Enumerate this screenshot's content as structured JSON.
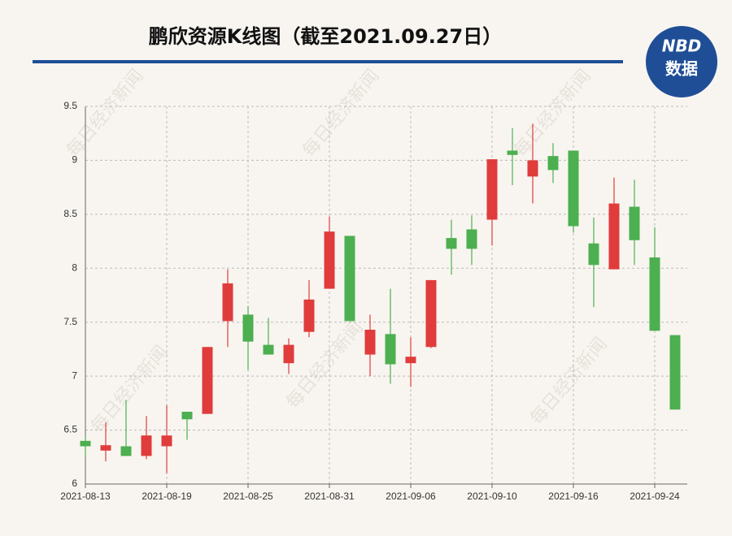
{
  "chart_data": {
    "type": "candlestick",
    "title": "鹏欣资源K线图（截至2021.09.27日）",
    "categories": [
      "2021-08-13",
      null,
      null,
      null,
      "2021-08-19",
      null,
      null,
      null,
      "2021-08-25",
      null,
      null,
      null,
      "2021-08-31",
      null,
      null,
      null,
      "2021-09-06",
      null,
      null,
      null,
      "2021-09-10",
      null,
      null,
      null,
      "2021-09-16",
      null,
      null,
      null,
      "2021-09-24",
      null
    ],
    "open": [
      6.4,
      6.31,
      6.35,
      6.26,
      6.35,
      6.67,
      6.65,
      7.51,
      7.57,
      7.29,
      7.12,
      7.41,
      7.81,
      8.3,
      7.2,
      7.39,
      7.12,
      7.27,
      8.28,
      8.36,
      8.45,
      9.09,
      8.85,
      9.04,
      9.09,
      8.23,
      7.99,
      8.57,
      8.1,
      7.38
    ],
    "high": [
      6.44,
      6.57,
      6.78,
      6.63,
      6.73,
      6.67,
      7.27,
      7.99,
      7.65,
      7.54,
      7.35,
      7.89,
      8.48,
      8.3,
      7.57,
      7.81,
      7.36,
      7.89,
      8.45,
      8.49,
      9.01,
      9.3,
      9.34,
      9.16,
      9.09,
      8.47,
      8.84,
      8.82,
      8.38,
      7.38
    ],
    "low": [
      6.26,
      6.21,
      6.26,
      6.23,
      6.1,
      6.41,
      6.65,
      7.27,
      7.06,
      7.2,
      7.02,
      7.36,
      7.81,
      7.51,
      7.0,
      6.93,
      6.9,
      7.26,
      7.94,
      8.03,
      8.21,
      8.77,
      8.6,
      8.79,
      8.33,
      7.64,
      7.99,
      8.03,
      7.42,
      6.69
    ],
    "close": [
      6.35,
      6.36,
      6.26,
      6.45,
      6.45,
      6.6,
      7.27,
      7.86,
      7.32,
      7.2,
      7.29,
      7.71,
      8.34,
      7.51,
      7.43,
      7.11,
      7.18,
      7.89,
      8.18,
      8.18,
      9.01,
      9.05,
      9.0,
      8.91,
      8.39,
      8.03,
      8.6,
      8.26,
      7.42,
      6.69
    ],
    "up_color": "#e03c3c",
    "down_color": "#4caf50",
    "ylim": [
      6,
      9.5
    ],
    "yticks": [
      6,
      6.5,
      7,
      7.5,
      8,
      8.5,
      9,
      9.5
    ],
    "grid": true
  },
  "logo": {
    "top": "NBD",
    "bottom": "数据"
  },
  "watermark": "每日经济新闻"
}
